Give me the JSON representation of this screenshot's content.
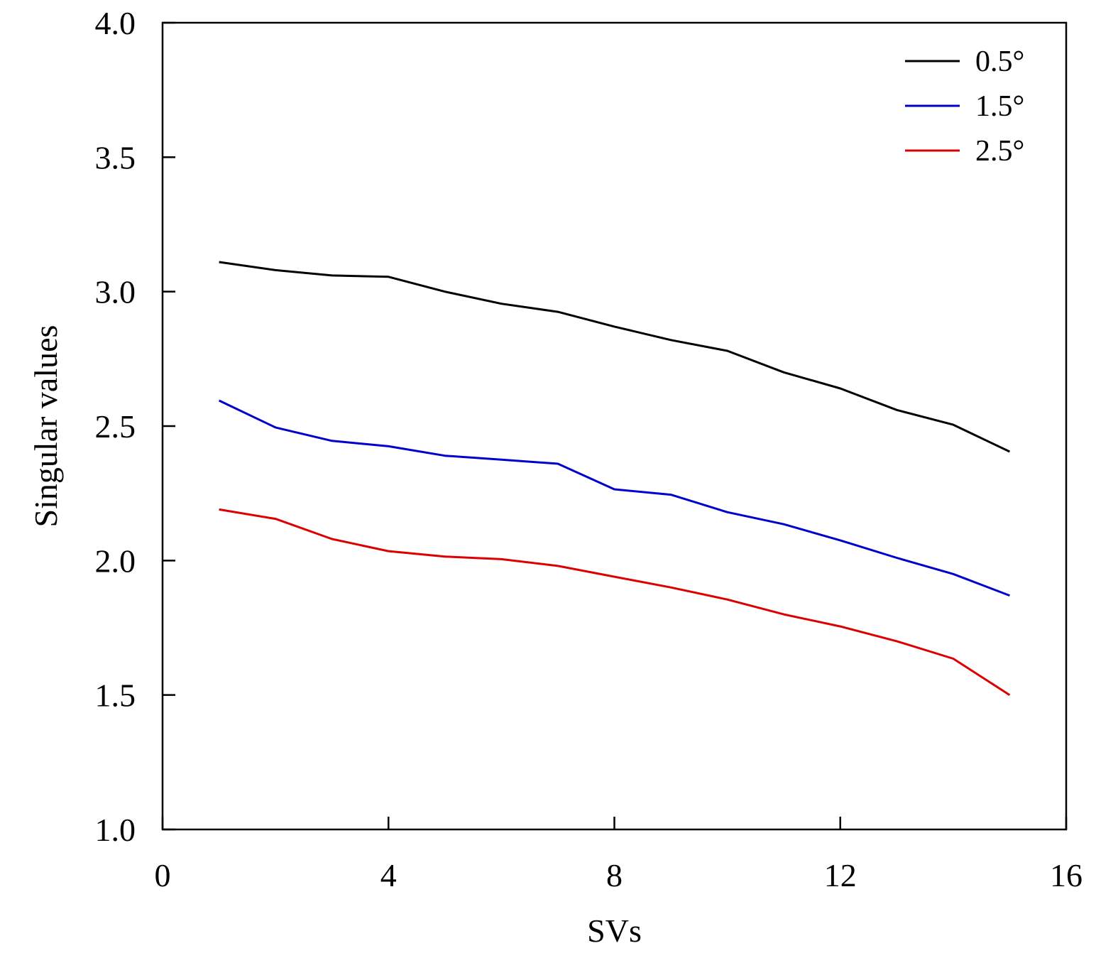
{
  "chart_data": {
    "type": "line",
    "title": "",
    "xlabel": "SVs",
    "ylabel": "Singular values",
    "xlim": [
      0,
      16
    ],
    "ylim": [
      1.0,
      4.0
    ],
    "xticks": [
      0,
      4,
      8,
      12,
      16
    ],
    "xtick_labels": [
      "0",
      "4",
      "8",
      "12",
      "16"
    ],
    "yticks": [
      1.0,
      1.5,
      2.0,
      2.5,
      3.0,
      3.5,
      4.0
    ],
    "ytick_labels": [
      "1.0",
      "1.5",
      "2.0",
      "2.5",
      "3.0",
      "3.5",
      "4.0"
    ],
    "grid": false,
    "legend_position": "top-right",
    "x": [
      1,
      2,
      3,
      4,
      5,
      6,
      7,
      8,
      9,
      10,
      11,
      12,
      13,
      14,
      15
    ],
    "series": [
      {
        "name": "0.5°",
        "color": "#000000",
        "values": [
          3.11,
          3.08,
          3.06,
          3.055,
          3.0,
          2.955,
          2.925,
          2.87,
          2.82,
          2.78,
          2.7,
          2.64,
          2.56,
          2.505,
          2.405
        ]
      },
      {
        "name": "1.5°",
        "color": "#0000cc",
        "values": [
          2.595,
          2.495,
          2.445,
          2.425,
          2.39,
          2.375,
          2.36,
          2.265,
          2.245,
          2.18,
          2.135,
          2.075,
          2.01,
          1.95,
          1.87
        ]
      },
      {
        "name": "2.5°",
        "color": "#dd0000",
        "values": [
          2.19,
          2.155,
          2.08,
          2.035,
          2.015,
          2.005,
          1.98,
          1.94,
          1.9,
          1.855,
          1.8,
          1.755,
          1.7,
          1.635,
          1.5
        ]
      }
    ]
  }
}
